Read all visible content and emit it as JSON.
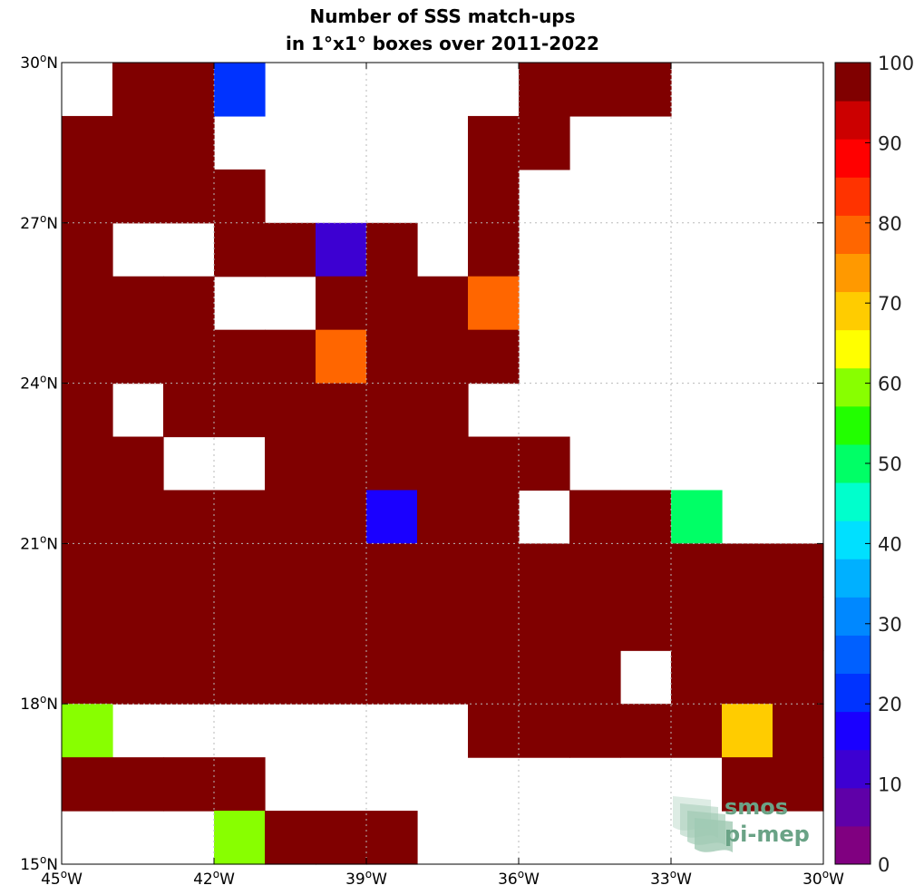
{
  "chart_data": {
    "type": "heatmap",
    "title_lines": [
      "Number of SSS match-ups",
      "in 1°x1° boxes over 2011-2022"
    ],
    "xlim": [
      -45,
      -30
    ],
    "ylim": [
      15,
      30
    ],
    "x_ticks": [
      {
        "value": -45,
        "num": "45",
        "deg": "o",
        "hem": "W"
      },
      {
        "value": -42,
        "num": "42",
        "deg": "o",
        "hem": "W"
      },
      {
        "value": -39,
        "num": "39",
        "deg": "o",
        "hem": "W"
      },
      {
        "value": -36,
        "num": "36",
        "deg": "o",
        "hem": "W"
      },
      {
        "value": -33,
        "num": "33",
        "deg": "o",
        "hem": "W"
      },
      {
        "value": -30,
        "num": "30",
        "deg": "o",
        "hem": "W"
      }
    ],
    "y_ticks": [
      {
        "value": 15,
        "num": "15",
        "deg": "o",
        "hem": "N"
      },
      {
        "value": 18,
        "num": "18",
        "deg": "o",
        "hem": "N"
      },
      {
        "value": 21,
        "num": "21",
        "deg": "o",
        "hem": "N"
      },
      {
        "value": 24,
        "num": "24",
        "deg": "o",
        "hem": "N"
      },
      {
        "value": 27,
        "num": "27",
        "deg": "o",
        "hem": "N"
      },
      {
        "value": 30,
        "num": "30",
        "deg": "o",
        "hem": "N"
      }
    ],
    "grid": true,
    "colorbar": {
      "range": [
        0,
        100
      ],
      "step": 5,
      "tick_values": [
        0,
        10,
        20,
        30,
        40,
        50,
        60,
        70,
        80,
        90,
        100
      ],
      "tick_labels": [
        "0",
        "10",
        "20",
        "30",
        "40",
        "50",
        "60",
        "70",
        "80",
        "90",
        "100"
      ],
      "colors": [
        "#800080",
        "#5f00a8",
        "#3d00d2",
        "#1a00ff",
        "#0033ff",
        "#0060ff",
        "#0088ff",
        "#00b0ff",
        "#00e0ff",
        "#00ffcc",
        "#00ff66",
        "#22ff00",
        "#88ff00",
        "#ffff00",
        "#ffcc00",
        "#ff9900",
        "#ff6600",
        "#ff3300",
        "#ff0000",
        "#cc0000",
        "#800000"
      ]
    },
    "grid_rows_lat_desc": [
      {
        "lat": 29.5,
        "values": [
          null,
          100,
          100,
          22,
          null,
          null,
          null,
          null,
          null,
          100,
          100,
          100,
          null,
          null,
          null
        ]
      },
      {
        "lat": 28.5,
        "values": [
          100,
          100,
          100,
          null,
          null,
          null,
          null,
          null,
          100,
          100,
          null,
          null,
          null,
          null,
          null
        ]
      },
      {
        "lat": 27.5,
        "values": [
          100,
          100,
          100,
          100,
          null,
          null,
          null,
          null,
          100,
          null,
          null,
          null,
          null,
          null,
          null
        ]
      },
      {
        "lat": 26.5,
        "values": [
          100,
          null,
          null,
          100,
          100,
          8,
          100,
          null,
          100,
          null,
          null,
          null,
          null,
          null,
          null
        ]
      },
      {
        "lat": 25.5,
        "values": [
          100,
          100,
          100,
          null,
          null,
          100,
          100,
          100,
          82,
          null,
          null,
          null,
          null,
          null,
          null
        ]
      },
      {
        "lat": 24.5,
        "values": [
          100,
          100,
          100,
          100,
          100,
          82,
          100,
          100,
          100,
          null,
          null,
          null,
          null,
          null,
          null
        ]
      },
      {
        "lat": 23.5,
        "values": [
          100,
          null,
          100,
          100,
          100,
          100,
          100,
          100,
          null,
          null,
          null,
          null,
          null,
          null,
          null
        ]
      },
      {
        "lat": 22.5,
        "values": [
          100,
          100,
          null,
          null,
          100,
          100,
          100,
          100,
          100,
          100,
          null,
          null,
          null,
          null,
          null
        ]
      },
      {
        "lat": 21.5,
        "values": [
          100,
          100,
          100,
          100,
          100,
          100,
          17,
          100,
          100,
          null,
          100,
          100,
          48,
          null,
          null
        ]
      },
      {
        "lat": 20.5,
        "values": [
          100,
          100,
          100,
          100,
          100,
          100,
          100,
          100,
          100,
          100,
          100,
          100,
          100,
          100,
          100
        ]
      },
      {
        "lat": 19.5,
        "values": [
          100,
          100,
          100,
          100,
          100,
          100,
          100,
          100,
          100,
          100,
          100,
          100,
          100,
          100,
          100
        ]
      },
      {
        "lat": 18.5,
        "values": [
          100,
          100,
          100,
          100,
          100,
          100,
          100,
          100,
          100,
          100,
          100,
          null,
          100,
          100,
          100
        ]
      },
      {
        "lat": 17.5,
        "values": [
          58,
          null,
          null,
          null,
          null,
          null,
          null,
          null,
          100,
          100,
          100,
          100,
          100,
          72,
          100
        ]
      },
      {
        "lat": 16.5,
        "values": [
          100,
          100,
          100,
          100,
          null,
          null,
          null,
          null,
          null,
          null,
          null,
          null,
          null,
          100,
          100
        ]
      },
      {
        "lat": 15.5,
        "values": [
          null,
          null,
          null,
          58,
          100,
          100,
          100,
          null,
          null,
          null,
          null,
          null,
          null,
          null,
          null
        ]
      }
    ]
  },
  "logo": {
    "line1": "smos",
    "line2": "pi-mep",
    "text_color": "#6aa386",
    "icon_color": "#7fb89a"
  }
}
